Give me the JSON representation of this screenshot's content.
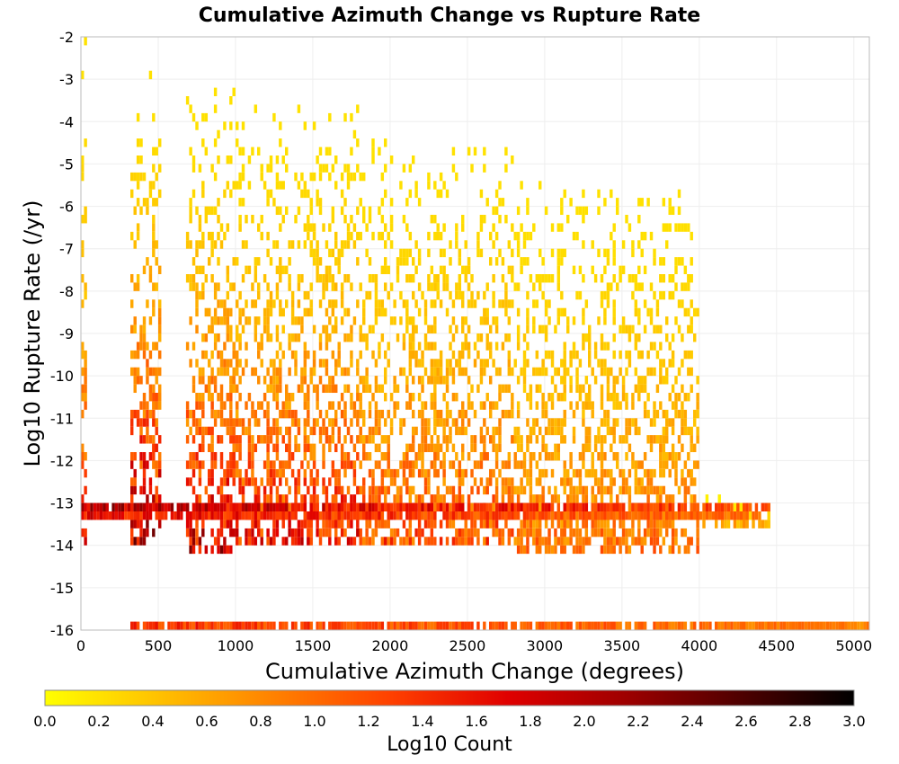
{
  "chart_data": {
    "type": "heatmap",
    "title": "Cumulative Azimuth Change vs Rupture Rate",
    "xlabel": "Cumulative Azimuth Change (degrees)",
    "ylabel": "Log10 Rupture Rate (/yr)",
    "xlim": [
      0,
      5100
    ],
    "ylim": [
      -16,
      -2
    ],
    "x_ticks": [
      "0",
      "500",
      "1000",
      "1500",
      "2000",
      "2500",
      "3000",
      "3500",
      "4000",
      "4500",
      "5000"
    ],
    "y_ticks": [
      "-2",
      "-3",
      "-4",
      "-5",
      "-6",
      "-7",
      "-8",
      "-9",
      "-10",
      "-11",
      "-12",
      "-13",
      "-14",
      "-15",
      "-16"
    ],
    "grid": true,
    "bin_width_x": 20,
    "bin_height_y": 0.2,
    "colorbar": {
      "label": "Log10 Count",
      "range": [
        0.0,
        3.0
      ],
      "ticks": [
        "0.0",
        "0.2",
        "0.4",
        "0.6",
        "0.8",
        "1.0",
        "1.2",
        "1.4",
        "1.6",
        "1.8",
        "2.0",
        "2.2",
        "2.4",
        "2.6",
        "2.8",
        "3.0"
      ],
      "colormap": [
        "#ffff00",
        "#ffc000",
        "#ff8000",
        "#ff4000",
        "#e00000",
        "#a00000",
        "#500000",
        "#000000"
      ]
    },
    "clusters": [
      {
        "x": [
          0,
          30
        ],
        "y": [
          -14,
          -2.2
        ],
        "v": [
          0.2,
          1.9
        ]
      },
      {
        "x": [
          320,
          520
        ],
        "y": [
          -14,
          -2.8
        ],
        "v": [
          0.2,
          2.6
        ]
      },
      {
        "x": [
          680,
          1000
        ],
        "y": [
          -14.2,
          -3.3
        ],
        "v": [
          0.2,
          2.4
        ]
      },
      {
        "x": [
          1000,
          1800
        ],
        "y": [
          -14,
          -3.8
        ],
        "v": [
          0.2,
          2.0
        ]
      },
      {
        "x": [
          1800,
          2800
        ],
        "y": [
          -14,
          -4.5
        ],
        "v": [
          0.2,
          1.6
        ]
      },
      {
        "x": [
          2800,
          4000
        ],
        "y": [
          -14.2,
          -5.5
        ],
        "v": [
          0.2,
          1.3
        ]
      },
      {
        "x": [
          4000,
          4450
        ],
        "y": [
          -13.6,
          -13.0
        ],
        "v": [
          0.1,
          0.8
        ]
      }
    ],
    "bands": [
      {
        "x": [
          0,
          4450
        ],
        "y": -13.2,
        "v": [
          0.4,
          2.4
        ]
      },
      {
        "x": [
          0,
          4400
        ],
        "y": -13.4,
        "v": [
          0.3,
          2.0
        ]
      },
      {
        "x": [
          320,
          5100
        ],
        "y": -16.0,
        "v": [
          0.3,
          1.7
        ]
      }
    ]
  }
}
